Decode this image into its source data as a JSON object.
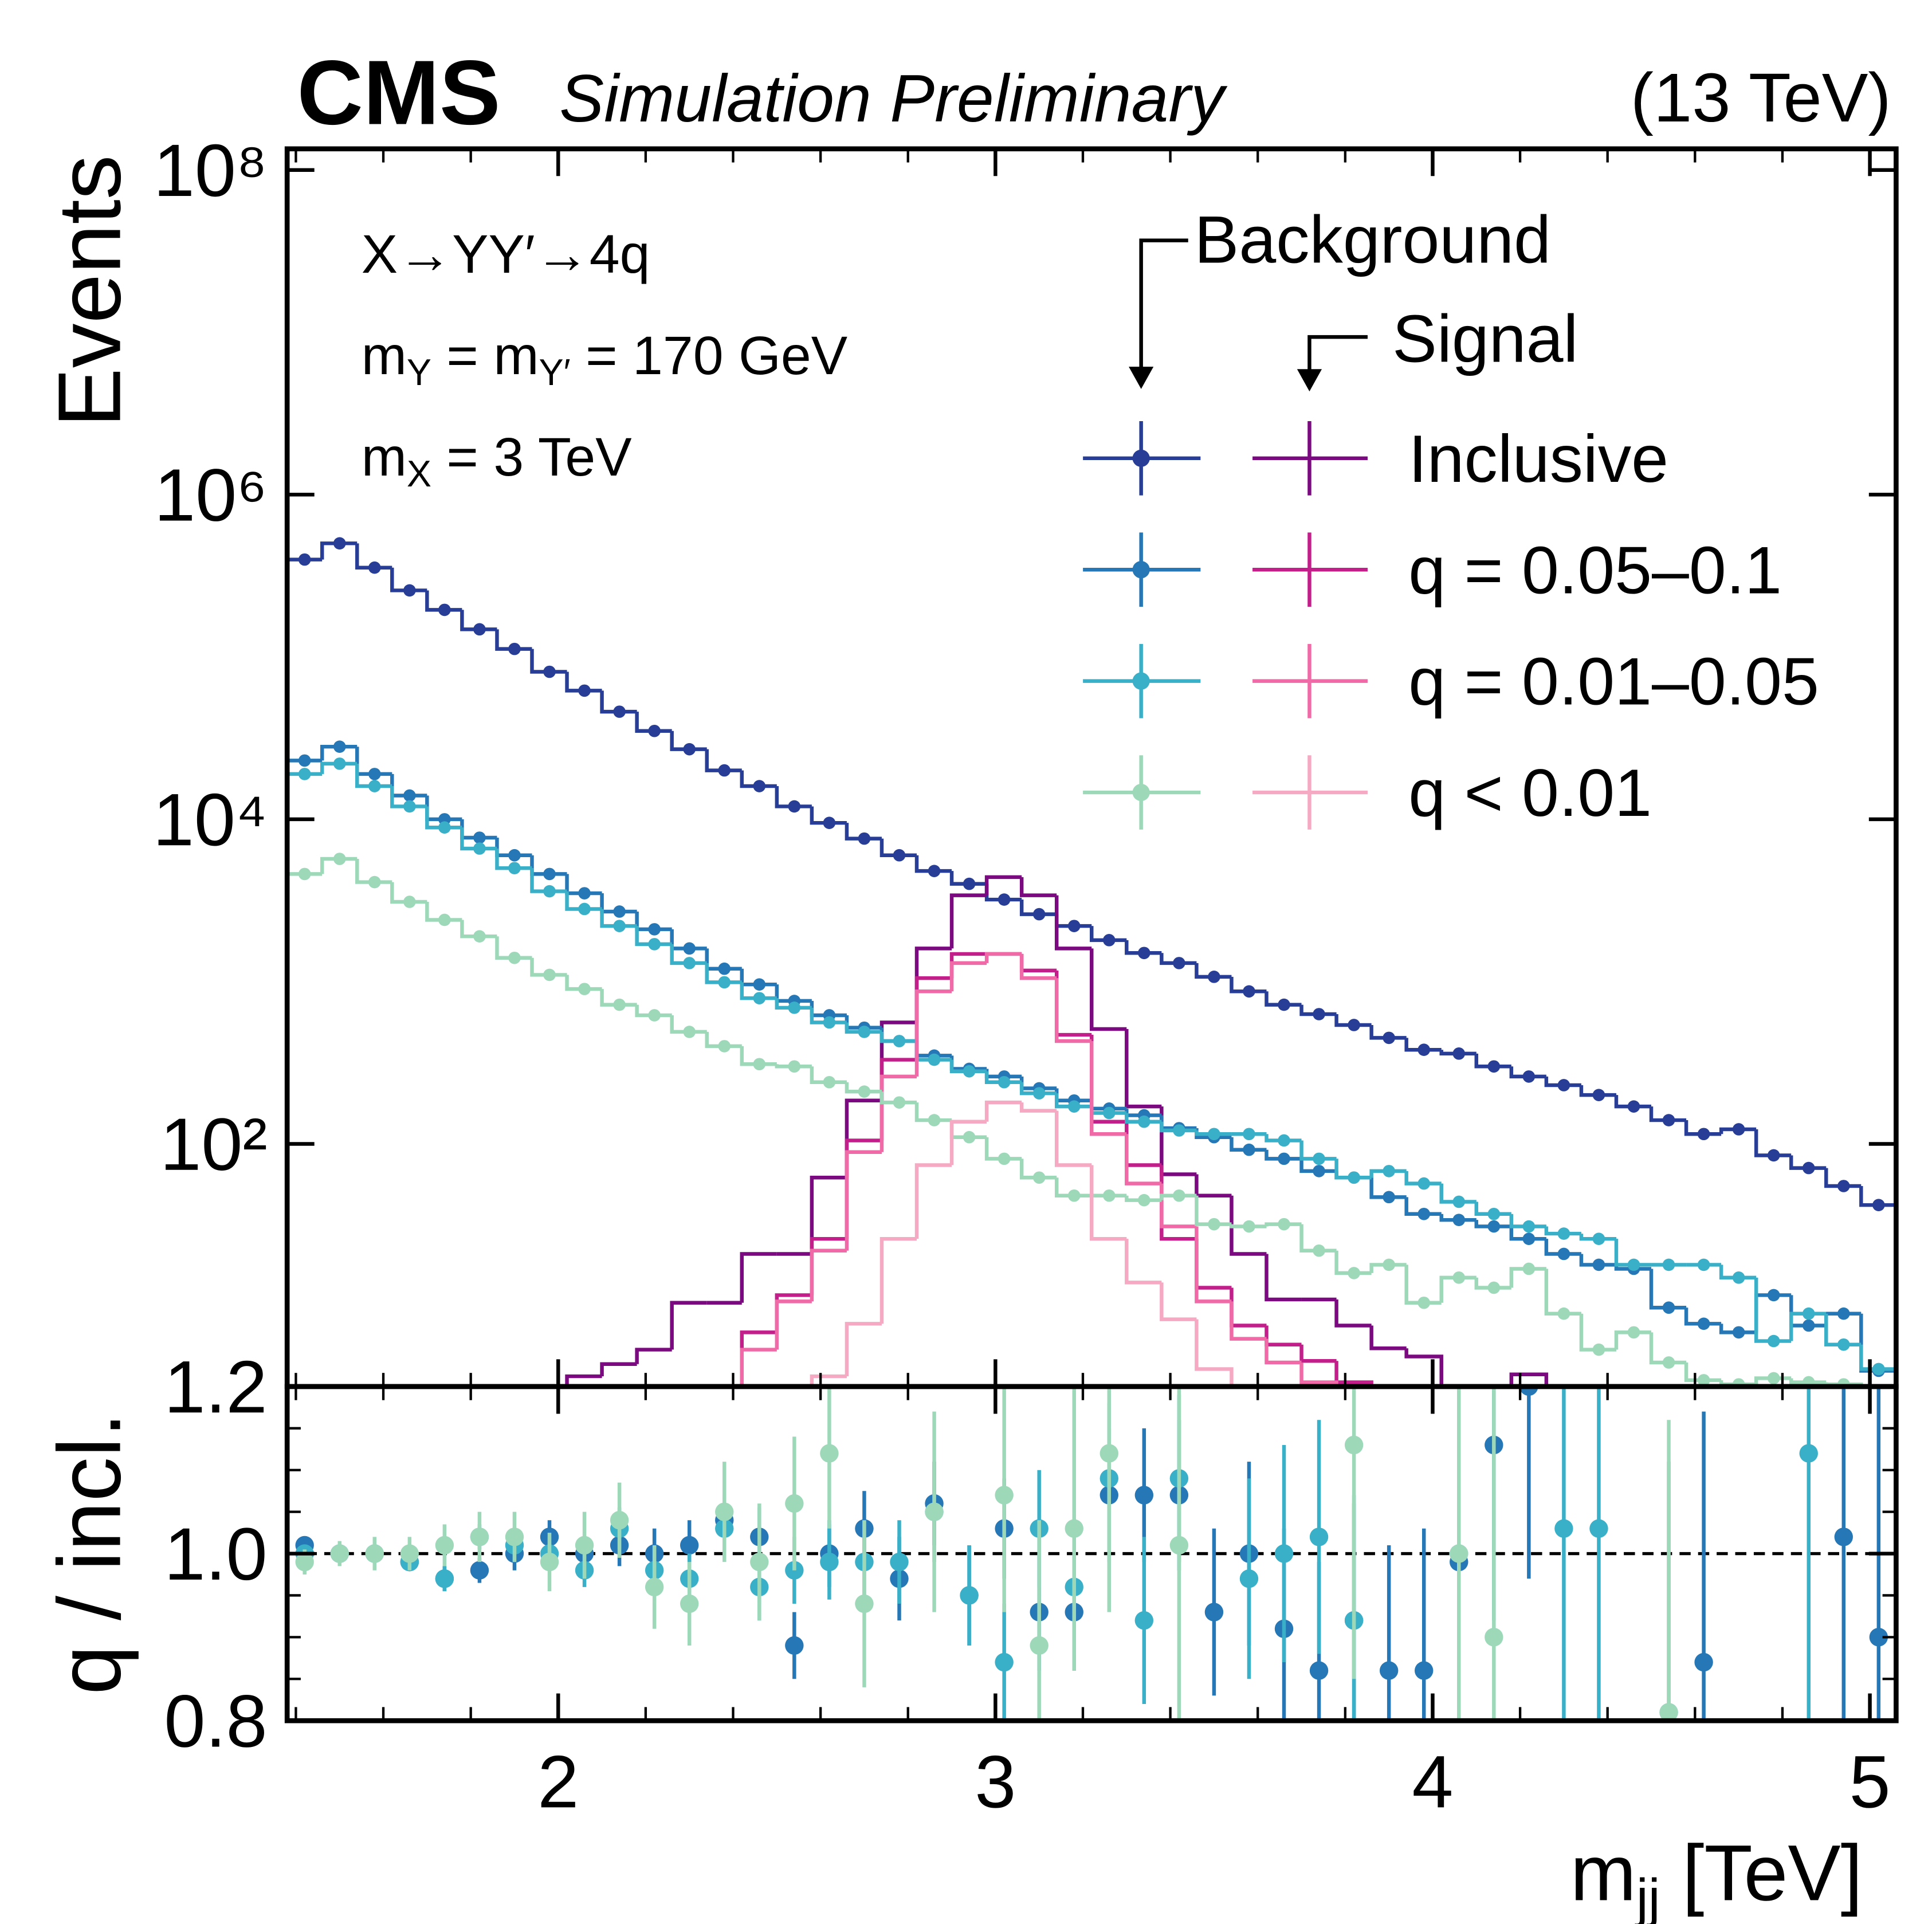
{
  "chart_data": [
    {
      "type": "histogram",
      "title": "CMS",
      "subtitle": "Simulation Preliminary",
      "energy_label": "(13 TeV)",
      "ylabel": "Events",
      "log_y": true,
      "annotations": [
        [
          "X→YY′→4q"
        ],
        [
          "m",
          "Y",
          " = m",
          "Y′",
          " = 170 GeV"
        ],
        [
          "m",
          "X",
          " = 3 TeV"
        ]
      ],
      "legend_titles": [
        "Background",
        "Signal"
      ],
      "xlim": [
        1.38,
        5.06
      ],
      "xticks": [
        2,
        3,
        4,
        5
      ],
      "xminorticks": [
        1.4,
        1.6,
        1.8,
        2.2,
        2.4,
        2.6,
        2.8,
        3.2,
        3.4,
        3.6,
        3.8,
        4.2,
        4.4,
        4.6,
        4.8
      ],
      "ylim": [
        3.2,
        135000000
      ],
      "yticks": [
        {
          "value": 100,
          "label": "10²"
        },
        {
          "value": 10000,
          "label": "10⁴"
        },
        {
          "value": 1000000,
          "label": "10⁶"
        },
        {
          "value": 100000000,
          "label": "10⁸"
        }
      ],
      "bins": [
        1.38,
        1.46,
        1.54,
        1.62,
        1.7,
        1.78,
        1.86,
        1.94,
        2.02,
        2.1,
        2.18,
        2.26,
        2.34,
        2.42,
        2.5,
        2.58,
        2.66,
        2.74,
        2.82,
        2.9,
        2.98,
        3.06,
        3.14,
        3.22,
        3.3,
        3.38,
        3.46,
        3.54,
        3.62,
        3.7,
        3.78,
        3.86,
        3.94,
        4.02,
        4.1,
        4.18,
        4.26,
        4.34,
        4.42,
        4.5,
        4.58,
        4.66,
        4.74,
        4.82,
        4.9,
        4.98,
        5.06
      ],
      "series": [
        {
          "name": "Inclusive",
          "background": {
            "color": "#283e96",
            "values": [
              398000,
              501000,
              355000,
              257000,
              195000,
              148000,
              112000,
              81000,
              62000,
              46000,
              35000,
              27000,
              20000,
              16000,
              12000,
              9500,
              7600,
              6000,
              4800,
              4000,
              3200,
              2600,
              2200,
              1800,
              1500,
              1300,
              1070,
              870,
              720,
              630,
              540,
              450,
              380,
              360,
              300,
              260,
              230,
              200,
              170,
              140,
              115,
              123,
              85,
              71,
              55,
              42
            ]
          },
          "signal": {
            "color": "#7b0a80",
            "values": [
              null,
              null,
              null,
              null,
              null,
              null,
              null,
              null,
              3.7,
              4.4,
              5.4,
              10.5,
              10.5,
              21,
              21,
              62,
              185,
              560,
              1600,
              3400,
              4400,
              3400,
              1600,
              510,
              170,
              65,
              48,
              21,
              11,
              11,
              7.6,
              5.5,
              4.9,
              null,
              null,
              3.8,
              null,
              null,
              null,
              null,
              null,
              null,
              null,
              null,
              null,
              null
            ]
          }
        },
        {
          "name": "q = 0.05–0.1",
          "background": {
            "color": "#2677b5",
            "values": [
              23000,
              28000,
              19000,
              14000,
              10000,
              7700,
              6000,
              4600,
              3500,
              2700,
              2100,
              1600,
              1200,
              960,
              760,
              620,
              520,
              430,
              350,
              290,
              260,
              220,
              185,
              165,
              150,
              125,
              110,
              92,
              81,
              68,
              62,
              47,
              37,
              34,
              31,
              26,
              21,
              18,
              17,
              9.8,
              7.8,
              6.9,
              11.7,
              7.6,
              9,
              4
            ]
          },
          "signal": {
            "color": "#c21f8a",
            "values": [
              null,
              null,
              null,
              null,
              null,
              null,
              null,
              null,
              null,
              null,
              null,
              null,
              null,
              6.9,
              11.7,
              26,
              105,
              330,
              1050,
              1480,
              1480,
              1170,
              470,
              137,
              74,
              26,
              13,
              7.6,
              5.8,
              4.6,
              3.4,
              null,
              null,
              null,
              null,
              null,
              null,
              null,
              null,
              null,
              null,
              null,
              null,
              null,
              null,
              null
            ]
          }
        },
        {
          "name": "q = 0.01–0.05",
          "background": {
            "color": "#3ab0c8",
            "values": [
              19000,
              22000,
              16000,
              12000,
              8900,
              6600,
              5000,
              3600,
              2800,
              2200,
              1700,
              1300,
              990,
              790,
              690,
              560,
              490,
              430,
              330,
              280,
              240,
              205,
              170,
              155,
              137,
              121,
              115,
              115,
              105,
              81,
              62,
              68,
              57,
              44,
              37,
              31,
              28,
              26,
              18,
              18,
              18,
              15,
              6.1,
              9,
              5.8,
              4.1
            ]
          },
          "signal": {
            "color": "#ef6aa6",
            "values": [
              null,
              null,
              null,
              null,
              null,
              null,
              null,
              null,
              null,
              null,
              null,
              null,
              null,
              5.4,
              10.7,
              22,
              89,
              260,
              870,
              1300,
              1480,
              1050,
              430,
              115,
              57,
              31,
              10.7,
              6.3,
              4.5,
              3.4,
              null,
              null,
              null,
              null,
              null,
              null,
              null,
              null,
              null,
              null,
              null,
              null,
              null,
              null,
              null,
              null
            ]
          }
        },
        {
          "name": "q < 0.01",
          "background": {
            "color": "#9dd9b9",
            "values": [
              4600,
              5700,
              4100,
              3100,
              2400,
              1900,
              1400,
              1100,
              900,
              720,
              620,
              490,
              400,
              310,
              300,
              240,
              210,
              180,
              140,
              110,
              81,
              62,
              48,
              48,
              45,
              48,
              32,
              31,
              32,
              22,
              16,
              18,
              10.5,
              15,
              13,
              17,
              9,
              5.4,
              6.9,
              4.5,
              3.5,
              3.3,
              3.6,
              3.4,
              3.3,
              null
            ]
          },
          "signal": {
            "color": "#f6a9c2",
            "values": [
              null,
              null,
              null,
              null,
              null,
              null,
              null,
              null,
              null,
              null,
              null,
              null,
              null,
              null,
              null,
              3.7,
              7.8,
              26,
              74,
              137,
              180,
              160,
              74,
              26,
              14,
              8.3,
              4.1,
              null,
              null,
              null,
              null,
              null,
              null,
              null,
              null,
              null,
              null,
              null,
              null,
              null,
              null,
              null,
              null,
              null,
              null,
              null
            ]
          }
        }
      ]
    },
    {
      "type": "errorbar",
      "ylabel": "q / incl.",
      "xlabel": [
        "m",
        "jj",
        " [TeV]"
      ],
      "xlim": [
        1.38,
        5.06
      ],
      "xticks": [
        2,
        3,
        4,
        5
      ],
      "xminorticks": [
        1.4,
        1.6,
        1.8,
        2.2,
        2.4,
        2.6,
        2.8,
        3.2,
        3.4,
        3.6,
        3.8,
        4.2,
        4.4,
        4.6,
        4.8
      ],
      "ylim": [
        0.8,
        1.2
      ],
      "yticks": [
        {
          "value": 0.8,
          "label": "0.8"
        },
        {
          "value": 1,
          "label": "1.0"
        },
        {
          "value": 1.2,
          "label": "1.2"
        }
      ],
      "yminorticks": [
        0.85,
        0.9,
        0.95,
        1.05,
        1.1,
        1.15
      ],
      "hline": 1,
      "x": [
        1.42,
        1.5,
        1.58,
        1.66,
        1.74,
        1.82,
        1.9,
        1.98,
        2.06,
        2.14,
        2.22,
        2.3,
        2.38,
        2.46,
        2.54,
        2.62,
        2.7,
        2.78,
        2.86,
        2.94,
        3.02,
        3.1,
        3.18,
        3.26,
        3.34,
        3.42,
        3.5,
        3.58,
        3.66,
        3.74,
        3.82,
        3.9,
        3.98,
        4.06,
        4.14,
        4.22,
        4.3,
        4.38,
        4.46,
        4.54,
        4.62,
        4.7,
        4.78,
        4.86,
        4.94,
        5.02
      ],
      "series": [
        {
          "color": "#2677b5",
          "values": [
            1.01,
            1.0,
            1.0,
            0.99,
            0.97,
            0.98,
            1.0,
            1.02,
            1.0,
            1.01,
            1.0,
            1.01,
            1.04,
            1.02,
            0.89,
            1.0,
            1.03,
            0.97,
            1.06,
            0.95,
            1.03,
            0.93,
            0.93,
            1.07,
            1.07,
            1.07,
            0.93,
            1.0,
            0.91,
            0.86,
            0.92,
            0.86,
            0.86,
            0.99,
            1.13,
            1.2,
            null,
            null,
            null,
            null,
            0.87,
            null,
            null,
            null,
            1.02,
            0.9
          ],
          "errors": [
            0.01,
            0.01,
            0.01,
            0.01,
            0.015,
            0.015,
            0.02,
            0.02,
            0.02,
            0.025,
            0.03,
            0.03,
            0.03,
            0.035,
            0.04,
            0.04,
            0.045,
            0.05,
            0.05,
            0.06,
            0.06,
            0.07,
            0.07,
            0.08,
            0.08,
            0.09,
            0.1,
            0.11,
            0.12,
            0.13,
            0.14,
            0.15,
            0.17,
            0.19,
            0.21,
            0.23,
            null,
            null,
            null,
            null,
            0.3,
            null,
            null,
            null,
            0.35,
            0.35
          ]
        },
        {
          "color": "#3ab0c8",
          "values": [
            1.0,
            1.0,
            1.0,
            0.99,
            0.97,
            1.02,
            1.01,
            1.0,
            0.98,
            1.03,
            0.98,
            0.97,
            1.03,
            0.96,
            0.98,
            0.99,
            0.99,
            0.99,
            1.05,
            0.95,
            0.87,
            1.03,
            0.96,
            1.09,
            0.92,
            1.09,
            null,
            0.97,
            1.0,
            1.02,
            0.92,
            null,
            null,
            1.0,
            null,
            null,
            1.03,
            1.03,
            null,
            0.81,
            null,
            null,
            null,
            1.12,
            null,
            null
          ],
          "errors": [
            0.01,
            0.01,
            0.01,
            0.01,
            0.015,
            0.015,
            0.02,
            0.02,
            0.02,
            0.025,
            0.03,
            0.03,
            0.035,
            0.04,
            0.04,
            0.045,
            0.05,
            0.05,
            0.06,
            0.06,
            0.07,
            0.07,
            0.08,
            0.09,
            0.1,
            0.1,
            null,
            0.12,
            0.13,
            0.14,
            0.15,
            null,
            null,
            0.2,
            null,
            null,
            0.25,
            0.25,
            null,
            0.3,
            null,
            null,
            null,
            0.35,
            null,
            null
          ]
        },
        {
          "color": "#9dd9b9",
          "values": [
            0.99,
            1.0,
            1.0,
            1.0,
            1.01,
            1.02,
            1.02,
            0.99,
            1.01,
            1.04,
            0.96,
            0.94,
            1.05,
            0.99,
            1.06,
            1.12,
            0.94,
            null,
            1.05,
            null,
            1.07,
            0.89,
            1.03,
            1.12,
            null,
            1.01,
            null,
            null,
            null,
            null,
            1.13,
            null,
            null,
            1.0,
            0.9,
            null,
            null,
            null,
            null,
            0.81,
            null,
            null,
            null,
            null,
            null,
            null
          ],
          "errors": [
            0.015,
            0.015,
            0.02,
            0.02,
            0.025,
            0.03,
            0.03,
            0.035,
            0.04,
            0.045,
            0.05,
            0.05,
            0.06,
            0.07,
            0.08,
            0.09,
            0.1,
            null,
            0.12,
            null,
            0.14,
            0.15,
            0.17,
            0.19,
            null,
            0.22,
            null,
            null,
            null,
            null,
            0.28,
            null,
            null,
            0.3,
            0.3,
            null,
            null,
            null,
            null,
            0.35,
            null,
            null,
            null,
            null,
            null,
            null
          ]
        }
      ]
    }
  ]
}
